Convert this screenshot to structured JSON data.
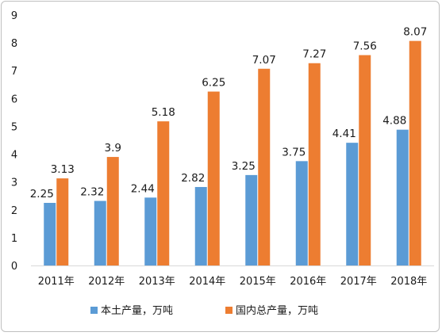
{
  "chart_data": {
    "type": "bar",
    "categories": [
      "2011年",
      "2012年",
      "2013年",
      "2014年",
      "2015年",
      "2016年",
      "2017年",
      "2018年"
    ],
    "series": [
      {
        "name": "本土产量，万吨",
        "color": "#5b9bd5",
        "values": [
          2.25,
          2.32,
          2.44,
          2.82,
          3.25,
          3.75,
          4.41,
          4.88
        ],
        "labels": [
          "2.25",
          "2.32",
          "2.44",
          "2.82",
          "3.25",
          "3.75",
          "4.41",
          "4.88"
        ]
      },
      {
        "name": "国内总产量，万吨",
        "color": "#ed7d31",
        "values": [
          3.13,
          3.9,
          5.18,
          6.25,
          7.07,
          7.27,
          7.56,
          8.07
        ],
        "labels": [
          "3.13",
          "3.9",
          "5.18",
          "6.25",
          "7.07",
          "7.27",
          "7.56",
          "8.07"
        ]
      }
    ],
    "ylim": [
      0,
      9
    ],
    "yticks": [
      0,
      1,
      2,
      3,
      4,
      5,
      6,
      7,
      8,
      9
    ],
    "grid": false,
    "legend": "bottom",
    "title": "",
    "xlabel": "",
    "ylabel": ""
  }
}
